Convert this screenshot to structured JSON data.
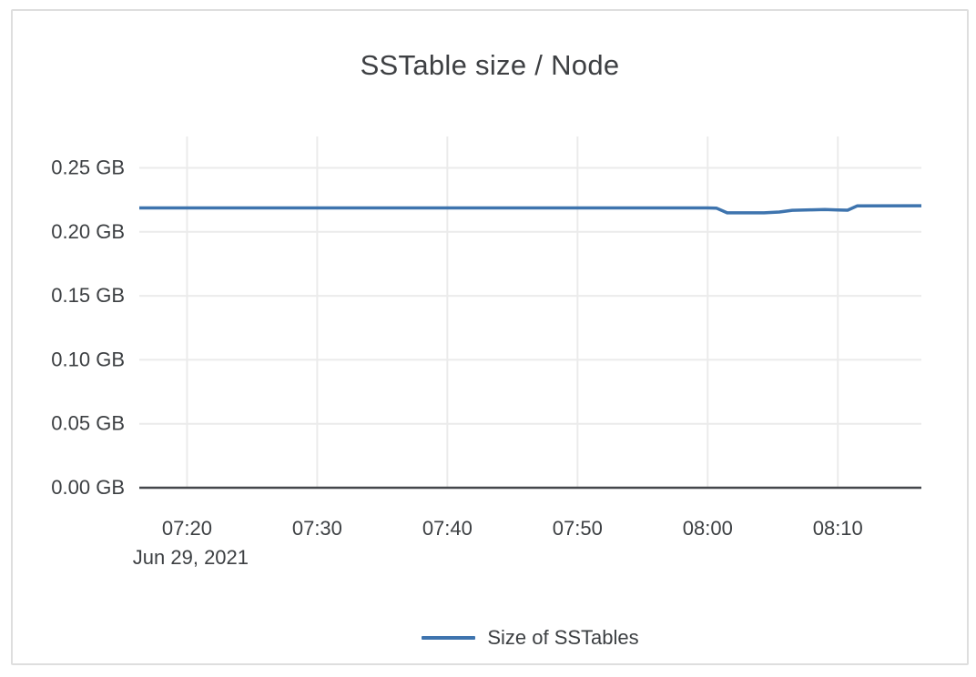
{
  "panel": {
    "title": "SSTable size / Node"
  },
  "chart_data": {
    "type": "line",
    "title": "SSTable size / Node",
    "xlabel": "",
    "ylabel": "",
    "date_label": "Jun 29, 2021",
    "x_tick_times": [
      "07:20",
      "07:30",
      "07:40",
      "07:50",
      "08:00",
      "08:10"
    ],
    "x_tick_labels": [
      "07:20",
      "07:30",
      "07:40",
      "07:50",
      "08:00",
      "08:10"
    ],
    "y_tick_values": [
      0,
      0.05,
      0.1,
      0.15,
      0.2,
      0.25
    ],
    "y_tick_labels": [
      "0.00 GB",
      "0.05 GB",
      "0.10 GB",
      "0.15 GB",
      "0.20 GB",
      "0.25 GB"
    ],
    "xlim": [
      "07:16:20",
      "08:16:25"
    ],
    "ylim": [
      0,
      0.2745
    ],
    "grid": true,
    "legend_position": "bottom-center",
    "unit": "GB",
    "colors": {
      "series_blue": "#3e74ae",
      "gridline": "#ebebeb",
      "axis_line": "#44474b",
      "text": "#3d4043",
      "card_border": "#dedede"
    },
    "series": [
      {
        "name": "Size of SSTables",
        "color": "#3e74ae",
        "points": [
          [
            "07:16:20",
            0.2187
          ],
          [
            "07:20:00",
            0.2187
          ],
          [
            "07:25:00",
            0.2187
          ],
          [
            "07:30:00",
            0.2187
          ],
          [
            "07:35:00",
            0.2187
          ],
          [
            "07:40:00",
            0.2187
          ],
          [
            "07:45:00",
            0.2187
          ],
          [
            "07:50:00",
            0.2187
          ],
          [
            "07:55:00",
            0.2187
          ],
          [
            "08:00:00",
            0.2187
          ],
          [
            "08:00:40",
            0.2185
          ],
          [
            "08:01:30",
            0.2148
          ],
          [
            "08:04:20",
            0.2148
          ],
          [
            "08:05:30",
            0.2155
          ],
          [
            "08:06:30",
            0.2168
          ],
          [
            "08:08:00",
            0.2172
          ],
          [
            "08:09:00",
            0.2174
          ],
          [
            "08:10:00",
            0.2171
          ],
          [
            "08:10:45",
            0.2169
          ],
          [
            "08:11:30",
            0.2203
          ],
          [
            "08:16:25",
            0.2204
          ]
        ]
      }
    ]
  }
}
